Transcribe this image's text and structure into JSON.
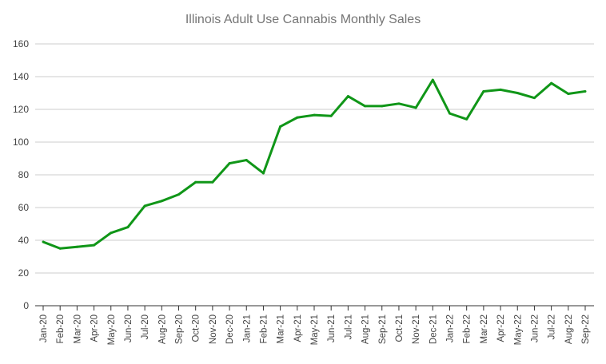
{
  "chart_data": {
    "type": "line",
    "title": "Illinois Adult Use Cannabis Monthly Sales",
    "xlabel": "",
    "ylabel": "",
    "ylim": [
      0,
      160
    ],
    "yticks": [
      0,
      20,
      40,
      60,
      80,
      100,
      120,
      140,
      160
    ],
    "grid": true,
    "legend": "none",
    "line_color": "#109618",
    "categories": [
      "Jan-20",
      "Feb-20",
      "Mar-20",
      "Apr-20",
      "May-20",
      "Jun-20",
      "Jul-20",
      "Aug-20",
      "Sep-20",
      "Oct-20",
      "Nov-20",
      "Dec-20",
      "Jan-21",
      "Feb-21",
      "Mar-21",
      "Apr-21",
      "May-21",
      "Jun-21",
      "Jul-21",
      "Aug-21",
      "Sep-21",
      "Oct-21",
      "Nov-21",
      "Dec-21",
      "Jan-22",
      "Feb-22",
      "Mar-22",
      "Apr-22",
      "May-22",
      "Jun-22",
      "Jul-22",
      "Aug-22",
      "Sep-22"
    ],
    "series": [
      {
        "name": "Monthly Sales",
        "values": [
          39,
          35,
          36,
          37,
          44.5,
          48,
          61,
          64,
          68,
          75.5,
          75.5,
          87,
          89,
          81,
          109.5,
          115,
          116.5,
          116,
          128,
          122,
          122,
          123.5,
          121,
          138,
          117.5,
          114,
          131,
          132,
          130,
          127,
          136,
          129.5,
          131
        ]
      }
    ]
  }
}
